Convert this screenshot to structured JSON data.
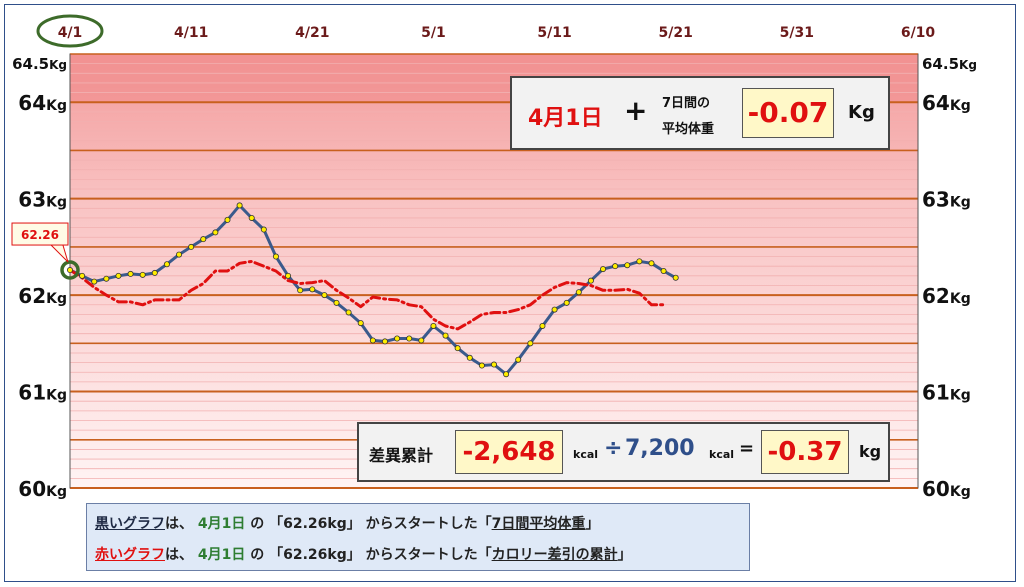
{
  "chart_data": {
    "type": "line",
    "x_tick_labels": [
      "4/1",
      "4/11",
      "4/21",
      "5/1",
      "5/11",
      "5/21",
      "5/31",
      "6/10"
    ],
    "x_range_days": [
      0,
      70
    ],
    "highlighted_tick": "4/1",
    "y_range": [
      60,
      64.5
    ],
    "y_tick_labels_left": [
      {
        "value": 64.5,
        "label": "64.5",
        "unit": "Kg"
      },
      {
        "value": 64,
        "label": "64",
        "unit": "Kg"
      },
      {
        "value": 63,
        "label": "63",
        "unit": "Kg"
      },
      {
        "value": 62,
        "label": "62",
        "unit": "Kg"
      },
      {
        "value": 61,
        "label": "61",
        "unit": "Kg"
      },
      {
        "value": 60,
        "label": "60",
        "unit": "Kg"
      }
    ],
    "y_tick_labels_right": [
      {
        "value": 64.5,
        "label": "64.5",
        "unit": "Kg"
      },
      {
        "value": 64,
        "label": "64",
        "unit": "Kg"
      },
      {
        "value": 63,
        "label": "63",
        "unit": "Kg"
      },
      {
        "value": 62,
        "label": "62",
        "unit": "Kg"
      },
      {
        "value": 61,
        "label": "61",
        "unit": "Kg"
      },
      {
        "value": 60,
        "label": "60",
        "unit": "Kg"
      }
    ],
    "start_label": "62.26",
    "series": [
      {
        "color": "#3a5a8c",
        "style": "solid",
        "marker_color": "#ffee00",
        "values": [
          62.26,
          62.2,
          62.14,
          62.17,
          62.2,
          62.22,
          62.21,
          62.23,
          62.32,
          62.42,
          62.5,
          62.58,
          62.65,
          62.78,
          62.93,
          62.8,
          62.68,
          62.4,
          62.2,
          62.05,
          62.06,
          62.0,
          61.92,
          61.82,
          61.71,
          61.53,
          61.52,
          61.55,
          61.55,
          61.53,
          61.68,
          61.58,
          61.45,
          61.35,
          61.27,
          61.28,
          61.18,
          61.33,
          61.5,
          61.68,
          61.85,
          61.92,
          62.03,
          62.15,
          62.27,
          62.3,
          62.31,
          62.35,
          62.33,
          62.25,
          62.18
        ],
        "x_start_day": 0
      },
      {
        "color": "#e01010",
        "style": "dash-dot",
        "values": [
          62.26,
          62.18,
          62.08,
          62.0,
          61.93,
          61.93,
          61.9,
          61.95,
          61.95,
          61.95,
          62.05,
          62.12,
          62.25,
          62.25,
          62.33,
          62.35,
          62.3,
          62.25,
          62.15,
          62.12,
          62.13,
          62.15,
          62.05,
          61.97,
          61.88,
          61.98,
          61.96,
          61.95,
          61.9,
          61.88,
          61.75,
          61.68,
          61.65,
          61.72,
          61.8,
          61.82,
          61.82,
          61.85,
          61.9,
          62.0,
          62.08,
          62.13,
          62.12,
          62.1,
          62.05,
          62.05,
          62.06,
          62.02,
          61.9,
          61.9
        ],
        "x_start_day": 0
      }
    ]
  },
  "info_box": {
    "date": "4月1日",
    "plus": "+",
    "avg_label_1": "7日間の",
    "avg_label_2": "平均体重",
    "avg_value": "-0.07",
    "unit": "Kg"
  },
  "diff_box": {
    "label": "差異累計",
    "kcal_value": "-2,648",
    "kcal_unit_1": "kcal",
    "divide": "÷",
    "divisor": "7,200",
    "kcal_unit_2": "kcal",
    "equals": "=",
    "result": "-0.37",
    "result_unit": "kg"
  },
  "caption": {
    "line1": {
      "graph": "黒いグラフ",
      "ha": "は、",
      "date": "4月1日",
      "no": " の",
      "q1": "「",
      "value": "62.26kg",
      "q2": "」",
      "mid": "からスタートした",
      "q3": "「",
      "target": "7日間平均体重",
      "q4": "」"
    },
    "line2": {
      "graph": "赤いグラフ",
      "ha": "は、",
      "date": "4月1日",
      "no": " の",
      "q1": "「",
      "value": "62.26kg",
      "q2": "」",
      "mid": "からスタートした",
      "q3": "「",
      "target": "カロリー差引の累計",
      "q4": "」"
    }
  }
}
